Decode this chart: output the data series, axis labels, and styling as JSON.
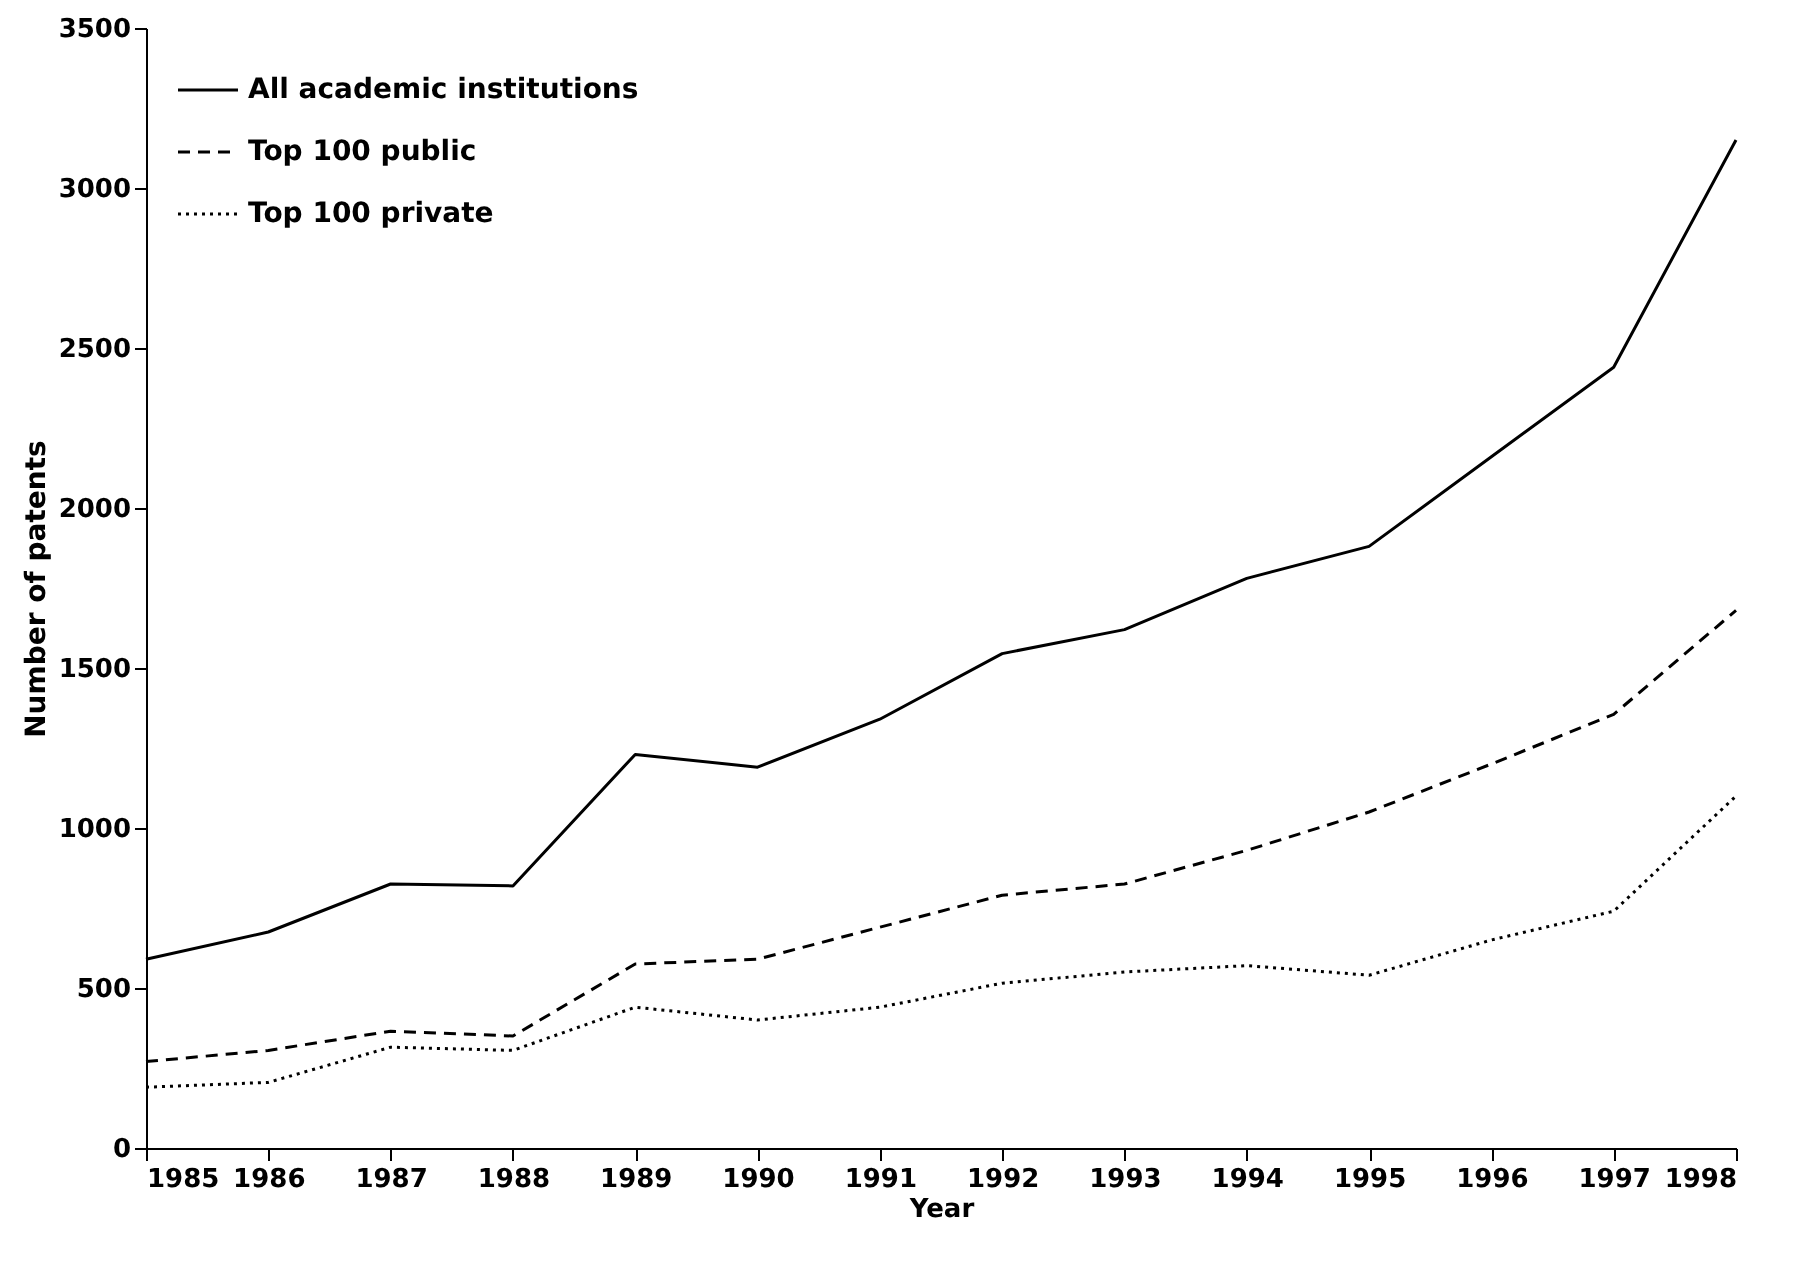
{
  "chart_data": {
    "type": "line",
    "xlabel": "Year",
    "ylabel": "Number of patents",
    "x": [
      1985,
      1986,
      1987,
      1988,
      1989,
      1990,
      1991,
      1992,
      1993,
      1994,
      1995,
      1996,
      1997,
      1998
    ],
    "series": [
      {
        "name": "All academic institutions",
        "color": "#000000",
        "line_style": "solid",
        "values": [
          590,
          675,
          825,
          819,
          1230,
          1190,
          1340,
          1545,
          1620,
          1780,
          1880,
          2160,
          2440,
          3150
        ]
      },
      {
        "name": "Top 100 public",
        "color": "#000000",
        "line_style": "dashed",
        "values": [
          270,
          305,
          365,
          350,
          575,
          590,
          690,
          790,
          825,
          930,
          1050,
          1200,
          1355,
          1680
        ]
      },
      {
        "name": "Top 100 private",
        "color": "#000000",
        "line_style": "dotted",
        "values": [
          190,
          205,
          315,
          305,
          440,
          400,
          440,
          515,
          550,
          570,
          540,
          650,
          740,
          1100
        ]
      }
    ],
    "xlim": [
      1985,
      1998
    ],
    "xticks": [
      1985,
      1986,
      1987,
      1988,
      1989,
      1990,
      1991,
      1992,
      1993,
      1994,
      1995,
      1996,
      1997,
      1998
    ],
    "ylim": [
      0,
      3500
    ],
    "yticks": [
      0,
      500,
      1000,
      1500,
      2000,
      2500,
      3000,
      3500
    ],
    "grid": false,
    "legend": "top left",
    "marker": "none"
  }
}
